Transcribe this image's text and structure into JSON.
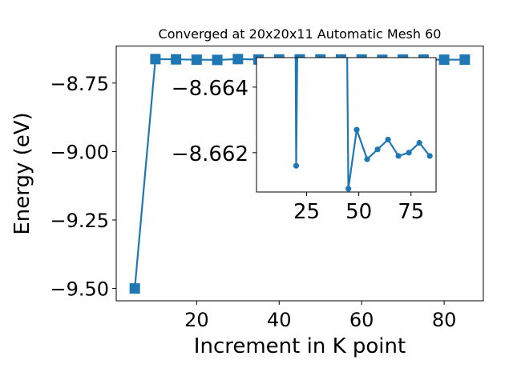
{
  "chart_data": [
    {
      "type": "line",
      "title": "Converged at 20x20x11 Automatic Mesh 60",
      "xlabel": "Increment in K point",
      "ylabel": "Energy (eV)",
      "xlim": [
        0.5,
        89.5
      ],
      "ylim": [
        -9.545,
        -8.615
      ],
      "xticks": [
        20,
        40,
        60,
        80
      ],
      "xtick_labels": [
        "20",
        "40",
        "60",
        "80"
      ],
      "yticks": [
        -8.75,
        -9.0,
        -9.25,
        -9.5
      ],
      "ytick_labels": [
        "−8.75",
        "−9.00",
        "−9.25",
        "−9.50"
      ],
      "grid": false,
      "marker": "square",
      "color": "#1f77b4",
      "series": [
        {
          "x": [
            5,
            10,
            15,
            20,
            25,
            30,
            35,
            40,
            45,
            50,
            55,
            60,
            65,
            70,
            75,
            80,
            85
          ],
          "y": [
            -9.5,
            -8.6625,
            -8.6635,
            -8.6647,
            -8.6655,
            -8.6625,
            -8.664,
            -8.6638,
            -8.6636,
            -8.6637,
            -8.6638,
            -8.664,
            -8.665,
            -8.6642,
            -8.6645,
            -8.6647,
            -8.6645
          ]
        }
      ]
    },
    {
      "type": "line",
      "placement": "inset",
      "xlim": [
        1,
        87
      ],
      "ylim": [
        -8.6608,
        -8.6649
      ],
      "xticks": [
        25,
        50,
        75
      ],
      "xtick_labels": [
        "25",
        "50",
        "75"
      ],
      "yticks": [
        -8.664,
        -8.662
      ],
      "ytick_labels": [
        "−8.664",
        "−8.662"
      ],
      "grid": false,
      "marker": "circle",
      "color": "#1f77b4",
      "series": [
        {
          "x": [
            19.5,
            20,
            21,
            44,
            45,
            49,
            54,
            59,
            64,
            69,
            74,
            79,
            84
          ],
          "y": [
            -8.668,
            -8.6616,
            -8.668,
            -8.668,
            -8.6609,
            -8.6627,
            -8.6618,
            -8.6621,
            -8.6624,
            -8.6619,
            -8.662,
            -8.6623,
            -8.6619
          ]
        }
      ]
    }
  ]
}
